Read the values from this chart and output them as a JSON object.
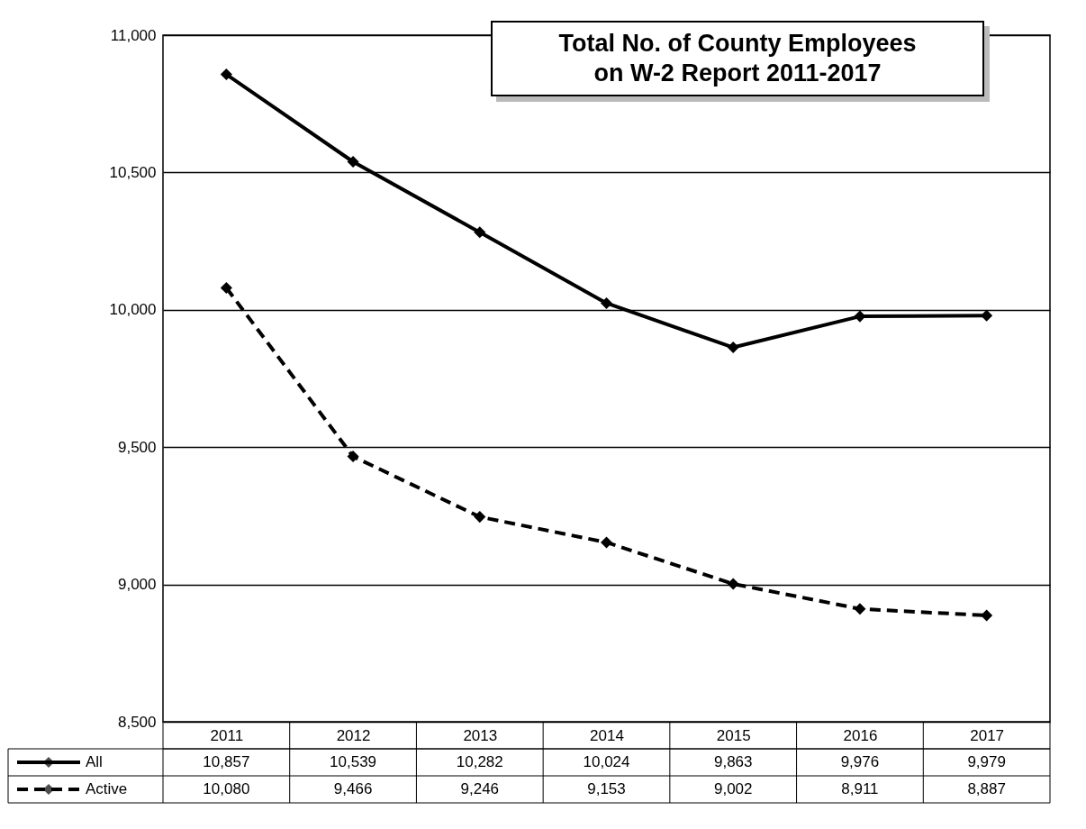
{
  "chart_data": {
    "type": "line",
    "title": "Total No. of County Employees\non W-2 Report 2011-2017",
    "categories": [
      "2011",
      "2012",
      "2013",
      "2014",
      "2015",
      "2016",
      "2017"
    ],
    "series": [
      {
        "name": "All",
        "color": "#000000",
        "line_style": "solid",
        "values": [
          10857,
          10539,
          10282,
          10024,
          9863,
          9976,
          9979
        ],
        "value_labels": [
          "10,857",
          "10,539",
          "10,282",
          "10,024",
          "9,863",
          "9,976",
          "9,979"
        ]
      },
      {
        "name": "Active",
        "color": "#000000",
        "line_style": "dashed",
        "values": [
          10080,
          9466,
          9246,
          9153,
          9002,
          8911,
          8887
        ],
        "value_labels": [
          "10,080",
          "9,466",
          "9,246",
          "9,153",
          "9,002",
          "8,911",
          "8,887"
        ]
      }
    ],
    "ylim": [
      8500,
      11000
    ],
    "yticks": [
      {
        "value": 8500,
        "label": "8,500"
      },
      {
        "value": 9000,
        "label": "9,000"
      },
      {
        "value": 9500,
        "label": "9,500"
      },
      {
        "value": 10000,
        "label": "10,000"
      },
      {
        "value": 10500,
        "label": "10,500"
      },
      {
        "value": 11000,
        "label": "11,000"
      }
    ],
    "grid": "y",
    "marker": "diamond",
    "legend": "bottom"
  }
}
